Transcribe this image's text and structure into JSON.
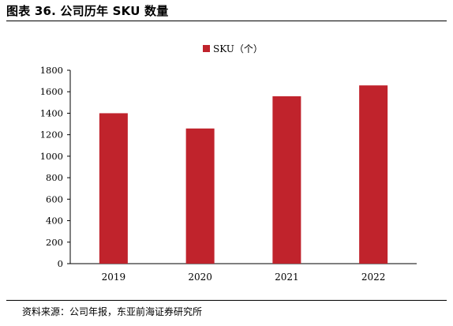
{
  "figure": {
    "title": "图表 36. 公司历年 SKU 数量",
    "source": "资料来源：公司年报，东亚前海证券研究所"
  },
  "colors": {
    "bar": "#C0232C",
    "axis": "#000000"
  },
  "chart_data": {
    "type": "bar",
    "categories": [
      "2019",
      "2020",
      "2021",
      "2022"
    ],
    "series": [
      {
        "name": "SKU（个）",
        "values": [
          1400,
          1258,
          1558,
          1659
        ]
      }
    ],
    "ylim": [
      0,
      1800
    ],
    "yticks": [
      0,
      200,
      400,
      600,
      800,
      1000,
      1200,
      1400,
      1600,
      1800
    ],
    "legend": "top-center",
    "grid": false
  }
}
